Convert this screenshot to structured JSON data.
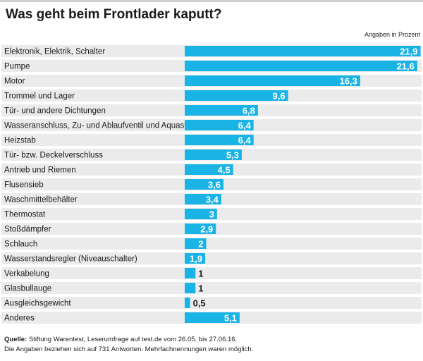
{
  "title": "Was geht beim Frontlader kaputt?",
  "unit_note": "Angaben in Prozent",
  "colors": {
    "bar": "#1ab3e6",
    "stripe": "#ebebeb",
    "value_inside": "#ffffff",
    "value_outside": "#1a1a1a"
  },
  "chart_data": {
    "type": "bar",
    "orientation": "horizontal",
    "title": "Was geht beim Frontlader kaputt?",
    "unit": "Angaben in Prozent",
    "categories": [
      "Elektronik, Elektrik, Schalter",
      "Pumpe",
      "Motor",
      "Trommel und Lager",
      "Tür- und andere Dichtungen",
      "Wasseranschluss, Zu- und Ablaufventil und Aquastop",
      "Heizstab",
      "Tür- bzw. Deckelverschluss",
      "Antrieb und Riemen",
      "Flusensieb",
      "Waschmittelbehälter",
      "Thermostat",
      "Stoßdämpfer",
      "Schlauch",
      "Wasserstandsregler (Niveauschalter)",
      "Verkabelung",
      "Glasbullauge",
      "Ausgleichsgewicht",
      "Anderes"
    ],
    "values": [
      21.9,
      21.6,
      16.3,
      9.6,
      6.8,
      6.4,
      6.4,
      5.3,
      4.5,
      3.6,
      3.4,
      3,
      2.9,
      2,
      1.9,
      1,
      1,
      0.5,
      5.1
    ],
    "value_labels": [
      "21,9",
      "21,6",
      "16,3",
      "9,6",
      "6,8",
      "6,4",
      "6,4",
      "5,3",
      "4,5",
      "3,6",
      "3,4",
      "3",
      "2,9",
      "2",
      "1,9",
      "1",
      "1",
      "0,5",
      "5,1"
    ],
    "xlim": [
      0,
      22
    ],
    "grid": false,
    "legend": "none"
  },
  "footer": {
    "source_label": "Quelle:",
    "source_text": " Stiftung Warentest, Leserumfrage auf test.de vom 26.05. bis 27.06.16.",
    "note": "Die Angaben beziehen sich auf  731 Antworten. Mehrfachnennungen waren möglich."
  }
}
